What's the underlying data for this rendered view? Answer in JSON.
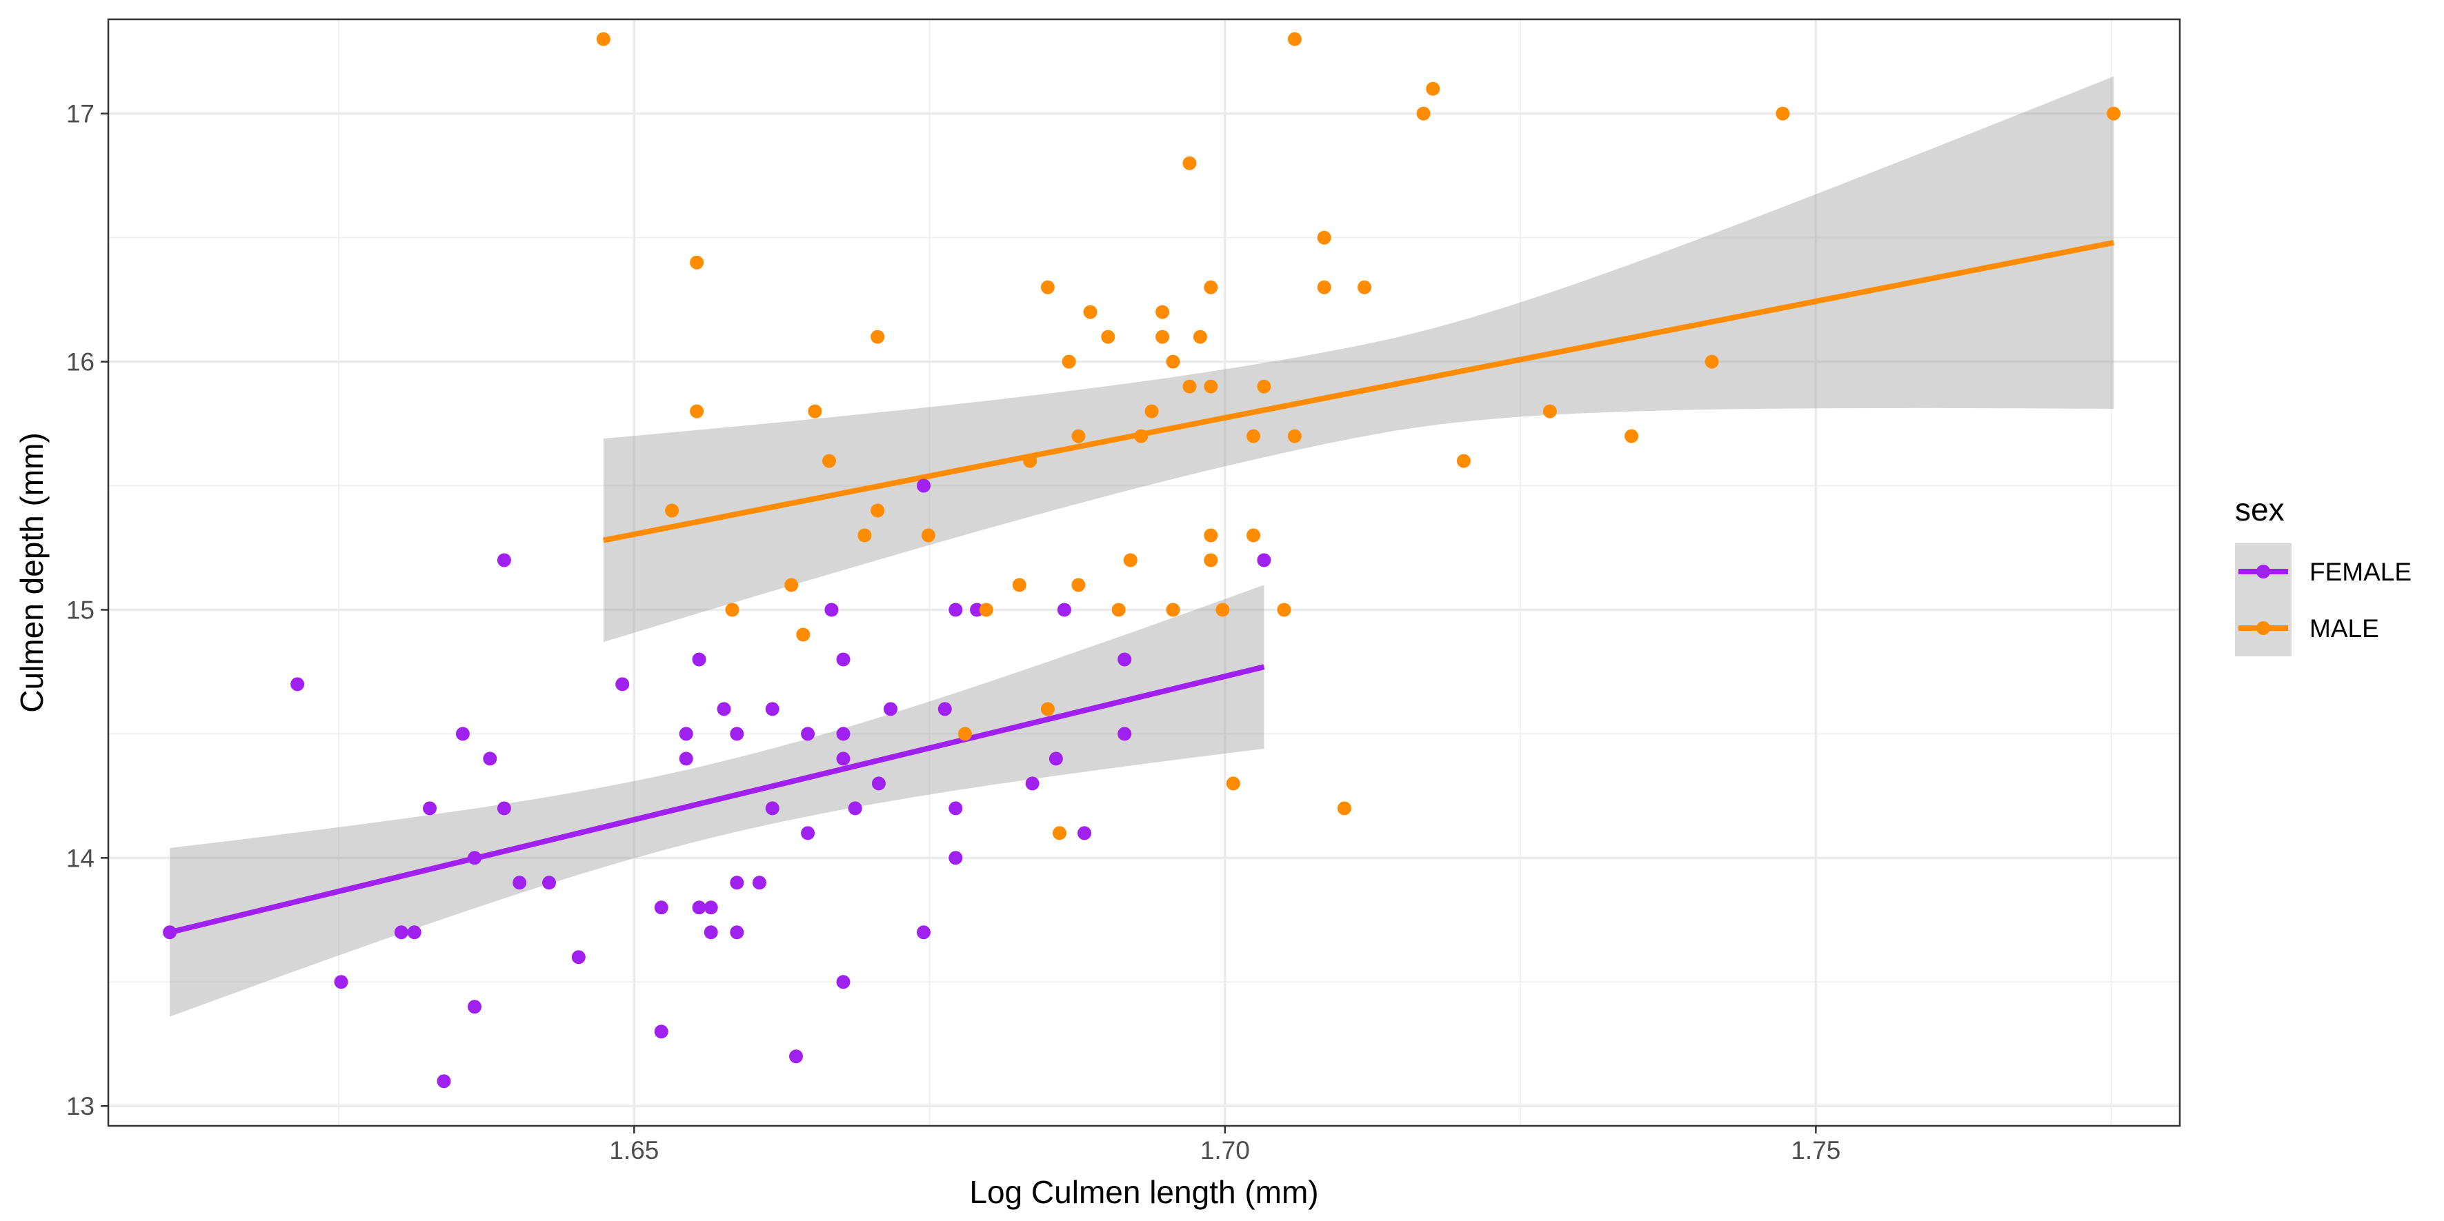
{
  "chart_data": {
    "type": "scatter",
    "xlabel": "Log Culmen length (mm)",
    "ylabel": "Culmen depth (mm)",
    "xlim": [
      1.6055,
      1.7808
    ],
    "ylim": [
      12.92,
      17.38
    ],
    "x_ticks": [
      1.65,
      1.7,
      1.75
    ],
    "x_tick_labels": [
      "1.65",
      "1.70",
      "1.75"
    ],
    "y_ticks": [
      13,
      14,
      15,
      16,
      17
    ],
    "y_tick_labels": [
      "13",
      "14",
      "15",
      "16",
      "17"
    ],
    "grid": true,
    "legend": {
      "title": "sex",
      "position": "right",
      "entries": [
        {
          "label": "FEMALE",
          "color": "#a020f0"
        },
        {
          "label": "MALE",
          "color": "#ff8c00"
        }
      ]
    },
    "series": [
      {
        "name": "FEMALE",
        "color": "#a020f0",
        "points": [
          [
            1.6107,
            13.7
          ],
          [
            1.6215,
            14.7
          ],
          [
            1.6252,
            13.5
          ],
          [
            1.6303,
            13.7
          ],
          [
            1.6314,
            13.7
          ],
          [
            1.6327,
            14.2
          ],
          [
            1.6339,
            13.1
          ],
          [
            1.6355,
            14.5
          ],
          [
            1.6365,
            13.4
          ],
          [
            1.6365,
            14.0
          ],
          [
            1.6378,
            14.4
          ],
          [
            1.639,
            15.2
          ],
          [
            1.639,
            14.2
          ],
          [
            1.6403,
            13.9
          ],
          [
            1.6428,
            13.9
          ],
          [
            1.6453,
            13.6
          ],
          [
            1.649,
            14.7
          ],
          [
            1.6523,
            13.8
          ],
          [
            1.6523,
            13.3
          ],
          [
            1.6544,
            14.5
          ],
          [
            1.6544,
            14.4
          ],
          [
            1.6555,
            14.8
          ],
          [
            1.6555,
            13.8
          ],
          [
            1.6565,
            13.8
          ],
          [
            1.6565,
            13.7
          ],
          [
            1.6576,
            14.6
          ],
          [
            1.6587,
            14.5
          ],
          [
            1.6587,
            13.9
          ],
          [
            1.6587,
            13.7
          ],
          [
            1.6606,
            13.9
          ],
          [
            1.6617,
            14.2
          ],
          [
            1.6617,
            14.6
          ],
          [
            1.6637,
            13.2
          ],
          [
            1.6647,
            14.5
          ],
          [
            1.6647,
            14.1
          ],
          [
            1.6667,
            15.0
          ],
          [
            1.6677,
            14.8
          ],
          [
            1.6677,
            14.5
          ],
          [
            1.6677,
            14.4
          ],
          [
            1.6677,
            13.5
          ],
          [
            1.6687,
            14.2
          ],
          [
            1.6707,
            14.3
          ],
          [
            1.6717,
            14.6
          ],
          [
            1.6745,
            15.5
          ],
          [
            1.6745,
            13.7
          ],
          [
            1.6763,
            14.6
          ],
          [
            1.6772,
            15.0
          ],
          [
            1.6772,
            14.2
          ],
          [
            1.6772,
            14.0
          ],
          [
            1.679,
            15.0
          ],
          [
            1.6837,
            14.3
          ],
          [
            1.6857,
            14.4
          ],
          [
            1.6864,
            15.0
          ],
          [
            1.6881,
            14.1
          ],
          [
            1.6915,
            14.8
          ],
          [
            1.6915,
            14.5
          ],
          [
            1.7033,
            15.2
          ]
        ],
        "fit": {
          "x": [
            1.6107,
            1.7033
          ],
          "y": [
            13.7,
            14.77
          ],
          "ci_low": [
            13.35,
            14.44
          ],
          "ci_high": [
            14.03,
            15.1
          ]
        }
      },
      {
        "name": "MALE",
        "color": "#ff8c00",
        "points": [
          [
            1.6474,
            17.3
          ],
          [
            1.6532,
            15.4
          ],
          [
            1.6553,
            16.4
          ],
          [
            1.6553,
            15.8
          ],
          [
            1.6583,
            15.0
          ],
          [
            1.6633,
            15.1
          ],
          [
            1.6643,
            14.9
          ],
          [
            1.6653,
            15.8
          ],
          [
            1.6665,
            15.6
          ],
          [
            1.6695,
            15.3
          ],
          [
            1.6706,
            16.1
          ],
          [
            1.6706,
            15.4
          ],
          [
            1.6749,
            15.3
          ],
          [
            1.678,
            14.5
          ],
          [
            1.6798,
            15.0
          ],
          [
            1.6826,
            15.1
          ],
          [
            1.6835,
            15.6
          ],
          [
            1.685,
            16.3
          ],
          [
            1.685,
            14.6
          ],
          [
            1.686,
            14.1
          ],
          [
            1.6868,
            16.0
          ],
          [
            1.6876,
            15.7
          ],
          [
            1.6876,
            15.1
          ],
          [
            1.6886,
            16.2
          ],
          [
            1.6901,
            16.1
          ],
          [
            1.691,
            15.0
          ],
          [
            1.692,
            15.2
          ],
          [
            1.6929,
            15.7
          ],
          [
            1.6938,
            15.8
          ],
          [
            1.6947,
            16.2
          ],
          [
            1.6947,
            16.1
          ],
          [
            1.6956,
            16.0
          ],
          [
            1.6956,
            15.0
          ],
          [
            1.697,
            16.8
          ],
          [
            1.697,
            15.9
          ],
          [
            1.6979,
            16.1
          ],
          [
            1.6988,
            16.3
          ],
          [
            1.6988,
            15.9
          ],
          [
            1.6988,
            15.3
          ],
          [
            1.6988,
            15.2
          ],
          [
            1.6998,
            15.0
          ],
          [
            1.7007,
            14.3
          ],
          [
            1.7024,
            15.7
          ],
          [
            1.7024,
            15.3
          ],
          [
            1.7033,
            15.9
          ],
          [
            1.705,
            15.0
          ],
          [
            1.7059,
            17.3
          ],
          [
            1.7059,
            15.7
          ],
          [
            1.7084,
            16.5
          ],
          [
            1.7084,
            16.3
          ],
          [
            1.7101,
            14.2
          ],
          [
            1.7118,
            16.3
          ],
          [
            1.7168,
            17.0
          ],
          [
            1.7176,
            17.1
          ],
          [
            1.7202,
            15.6
          ],
          [
            1.7275,
            15.8
          ],
          [
            1.7344,
            15.7
          ],
          [
            1.7412,
            16.0
          ],
          [
            1.7472,
            17.0
          ],
          [
            1.7752,
            17.0
          ]
        ],
        "fit": {
          "x": [
            1.6474,
            1.7752
          ],
          "y": [
            15.28,
            16.48
          ],
          "ci_low": [
            14.87,
            15.81
          ],
          "ci_high": [
            15.69,
            17.15
          ]
        }
      }
    ]
  }
}
